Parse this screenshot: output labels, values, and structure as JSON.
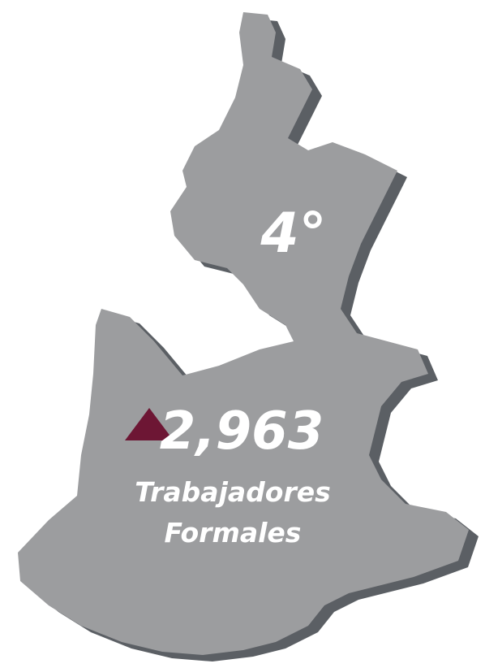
{
  "rank": "4°",
  "value": "2,963",
  "label_lines": [
    "Trabajadores",
    "Formales"
  ]
}
